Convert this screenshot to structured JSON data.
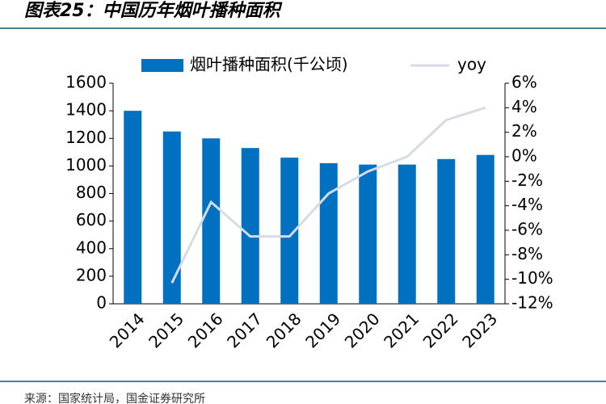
{
  "chart_data": {
    "type": "bar_line",
    "title": "图表25：中国历年烟叶播种面积",
    "source": "来源：国家统计局，国金证券研究所",
    "categories": [
      "2014",
      "2015",
      "2016",
      "2017",
      "2018",
      "2019",
      "2020",
      "2021",
      "2022",
      "2023"
    ],
    "series": [
      {
        "name": "烟叶播种面积(千公顷)",
        "type": "bar",
        "color": "#0070c0",
        "values": [
          1400,
          1250,
          1200,
          1130,
          1060,
          1020,
          1010,
          1010,
          1050,
          1080
        ]
      },
      {
        "name": "yoy",
        "type": "line",
        "axis": "y2",
        "color": "#d6dbe6",
        "values": [
          null,
          -10.3,
          -3.7,
          -6.5,
          -6.5,
          -3,
          -1.2,
          0,
          3,
          4
        ]
      }
    ],
    "ylim": [
      0,
      1600
    ],
    "yticks": [
      0,
      200,
      400,
      600,
      800,
      1000,
      1200,
      1400,
      1600
    ],
    "y2lim": [
      -12,
      6
    ],
    "y2ticks": [
      {
        "value": -12,
        "label": "-12%"
      },
      {
        "value": -10,
        "label": "-10%"
      },
      {
        "value": -8,
        "label": "-8%"
      },
      {
        "value": -6,
        "label": "-6%"
      },
      {
        "value": -4,
        "label": "-4%"
      },
      {
        "value": -2,
        "label": "-2%"
      },
      {
        "value": 0,
        "label": "0%"
      },
      {
        "value": 2,
        "label": "2%"
      },
      {
        "value": 4,
        "label": "4%"
      },
      {
        "value": 6,
        "label": "6%"
      }
    ],
    "legend": "top"
  }
}
